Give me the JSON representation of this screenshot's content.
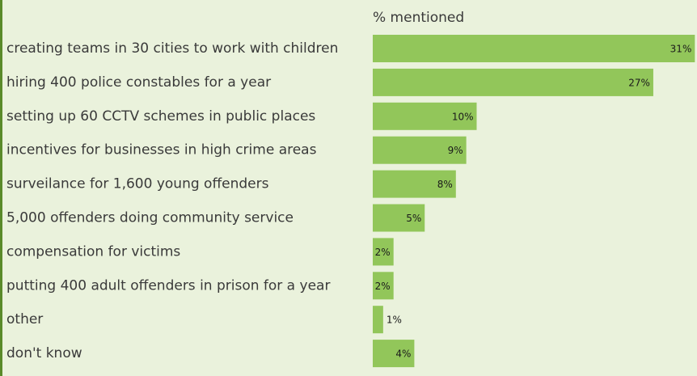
{
  "chart_data": {
    "type": "bar",
    "orientation": "horizontal",
    "x_label": "% mentioned",
    "categories": [
      "creating teams in 30 cities to work with children",
      "hiring 400 police constables for a year",
      "setting up 60 CCTV schemes in public places",
      "incentives for businesses in high crime areas",
      "surveilance for 1,600 young offenders",
      "5,000 offenders doing community service",
      "compensation for victims",
      "putting 400 adult offenders in prison for a year",
      "other",
      "don't know"
    ],
    "values": [
      31,
      27,
      10,
      9,
      8,
      5,
      2,
      2,
      1,
      4
    ],
    "value_labels": [
      "31%",
      "27%",
      "10%",
      "9%",
      "8%",
      "5%",
      "2%",
      "2%",
      "1%",
      "4%"
    ],
    "color": "#92c65a"
  }
}
